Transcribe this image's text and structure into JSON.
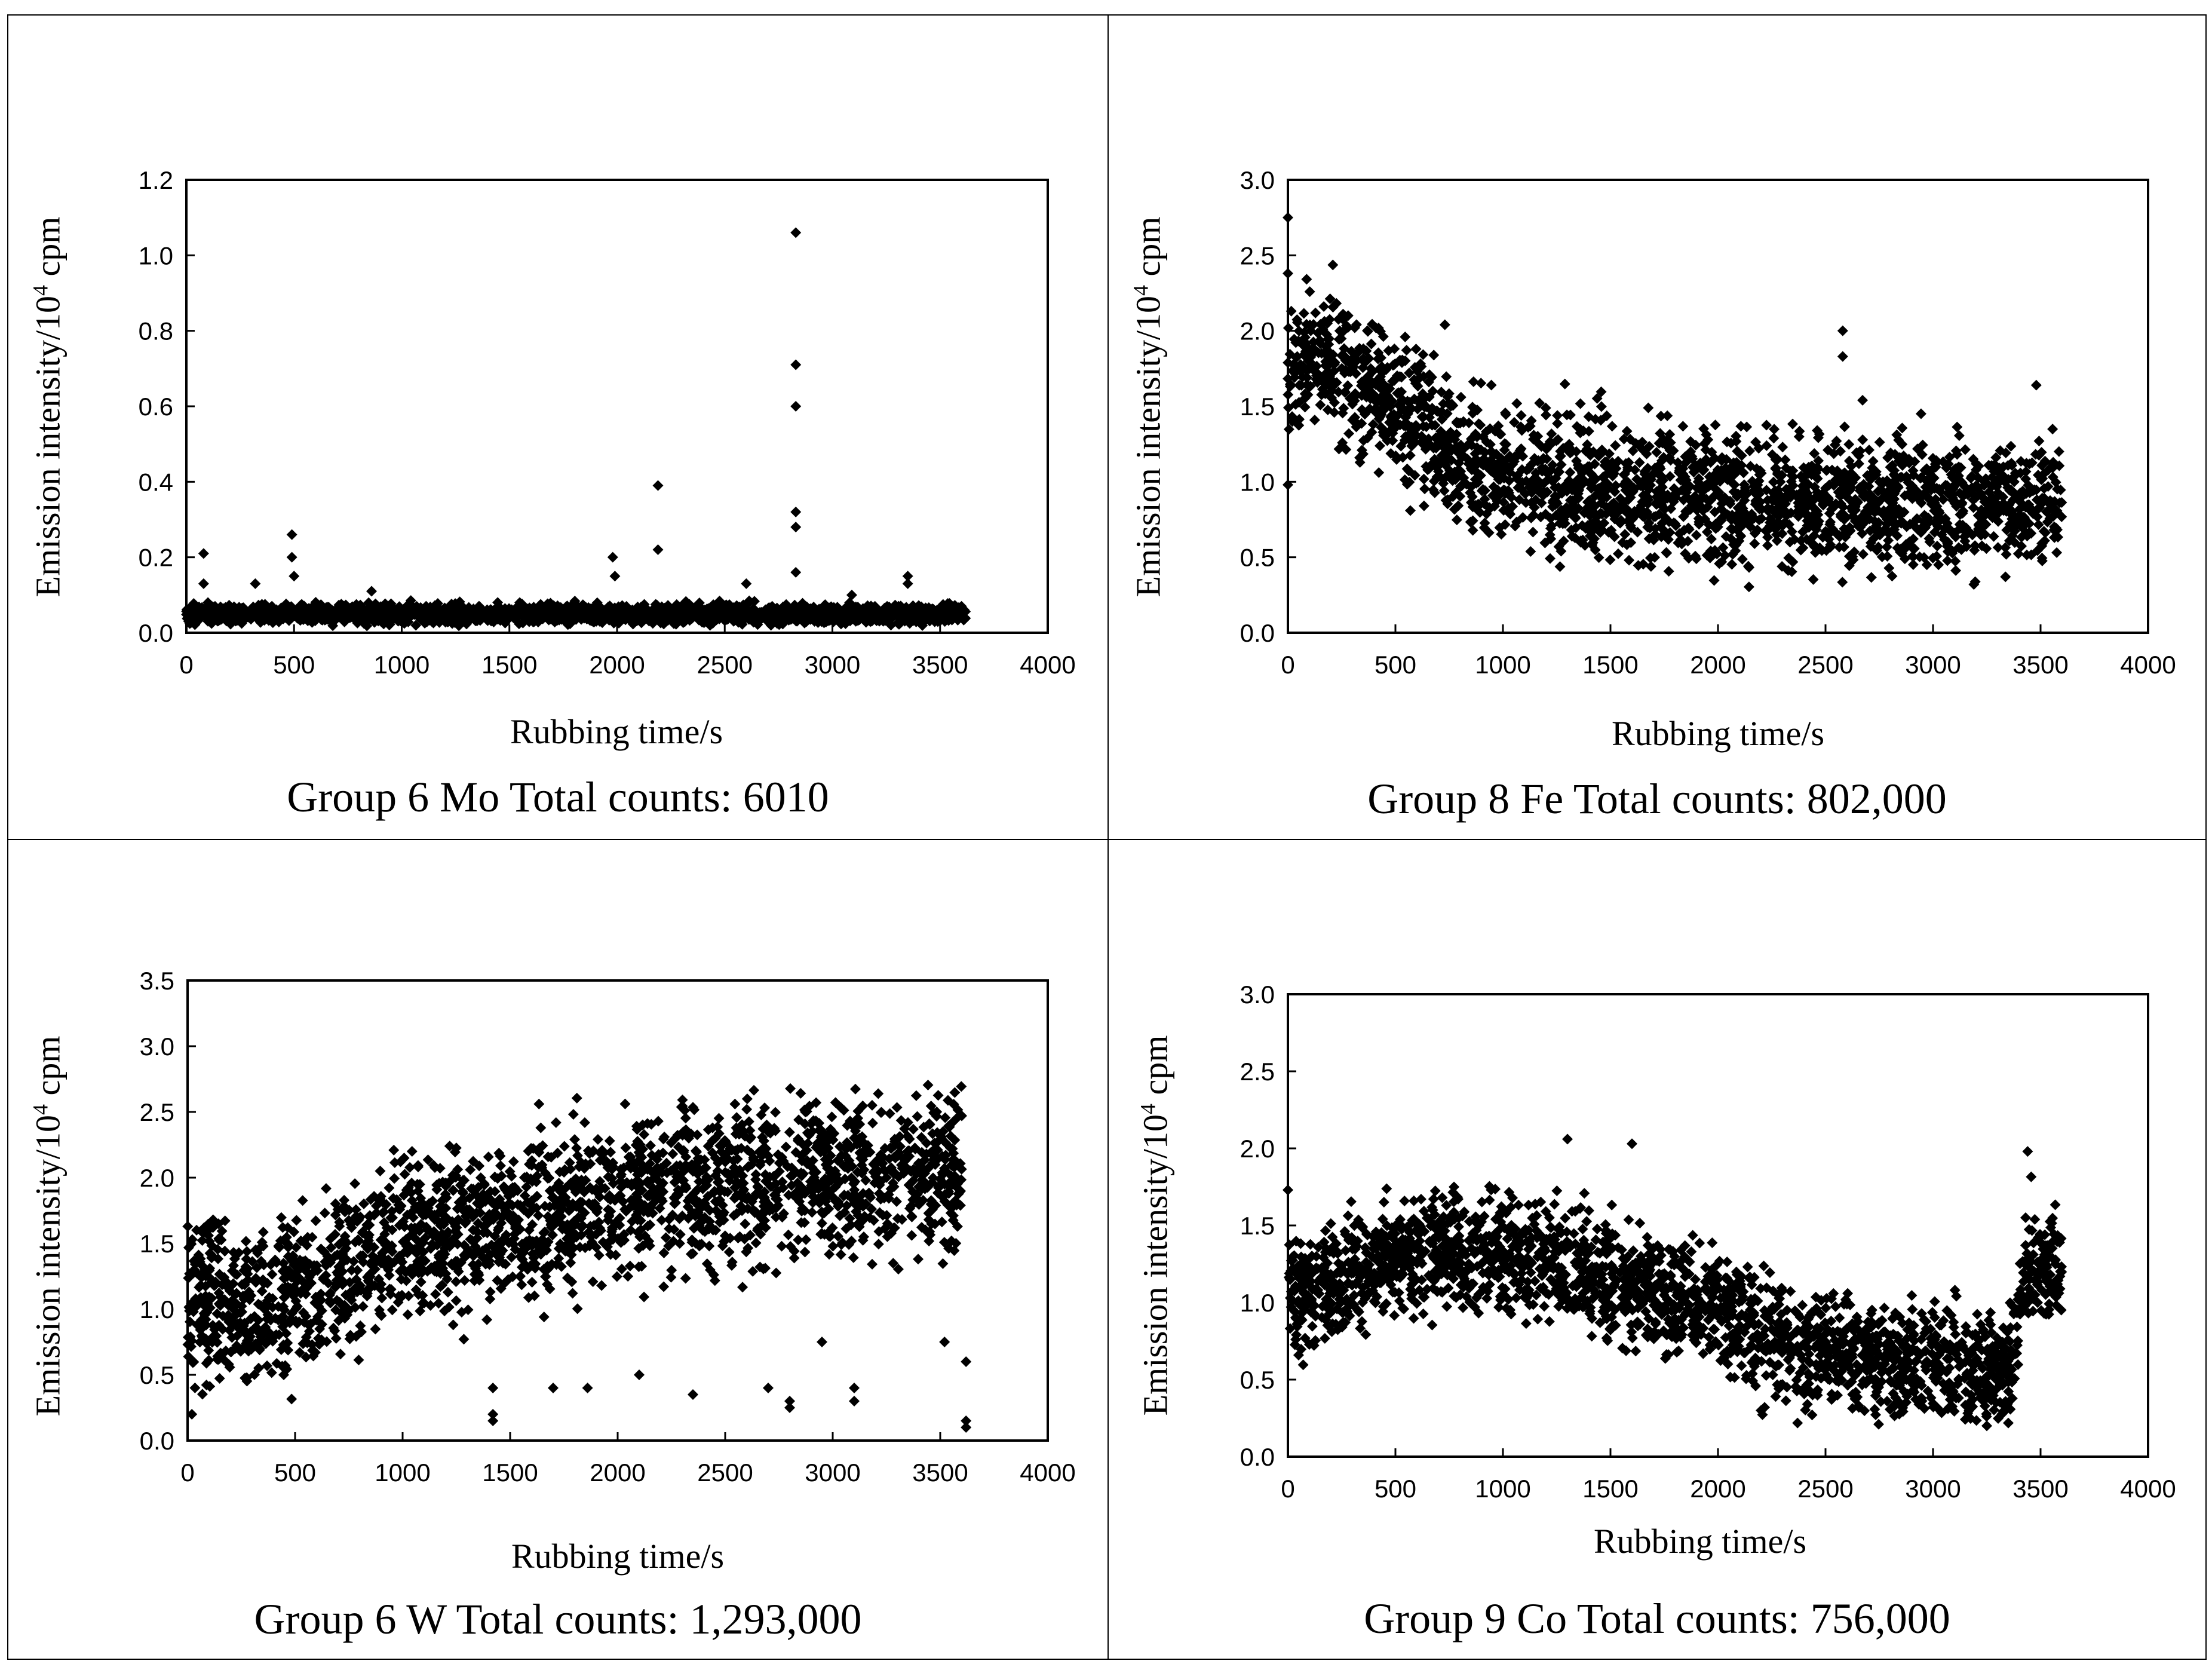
{
  "chart_data": [
    {
      "type": "scatter",
      "caption": "Group 6 Mo Total counts: 6010",
      "xlabel": "Rubbing time/s",
      "ylabel_main": "Emission intensity/10",
      "ylabel_sup": "4",
      "ylabel_unit": " cpm",
      "xlim": [
        0,
        4000
      ],
      "ylim": [
        0,
        1.2
      ],
      "xticks": [
        "0",
        "500",
        "1000",
        "1500",
        "2000",
        "2500",
        "3000",
        "3500",
        "4000"
      ],
      "yticks": [
        "0.0",
        "0.2",
        "0.4",
        "0.6",
        "0.8",
        "1.0",
        "1.2"
      ],
      "trend": [
        [
          0,
          0.05
        ],
        [
          1000,
          0.05
        ],
        [
          2000,
          0.05
        ],
        [
          3000,
          0.05
        ],
        [
          3620,
          0.05
        ]
      ],
      "spread": 0.012,
      "outliers": [
        [
          80,
          0.21
        ],
        [
          80,
          0.13
        ],
        [
          320,
          0.13
        ],
        [
          490,
          0.26
        ],
        [
          490,
          0.2
        ],
        [
          500,
          0.15
        ],
        [
          860,
          0.11
        ],
        [
          1980,
          0.2
        ],
        [
          1990,
          0.15
        ],
        [
          2190,
          0.39
        ],
        [
          2190,
          0.22
        ],
        [
          2830,
          1.06
        ],
        [
          2830,
          0.71
        ],
        [
          2830,
          0.6
        ],
        [
          2830,
          0.32
        ],
        [
          2830,
          0.28
        ],
        [
          2830,
          0.16
        ],
        [
          3350,
          0.15
        ],
        [
          3350,
          0.13
        ],
        [
          3090,
          0.1
        ],
        [
          2600,
          0.13
        ]
      ]
    },
    {
      "type": "scatter",
      "caption": "Group 8 Fe Total counts: 802,000",
      "xlabel": "Rubbing time/s",
      "ylabel_main": "Emission intensity/10",
      "ylabel_sup": "4",
      "ylabel_unit": " cpm",
      "xlim": [
        0,
        4000
      ],
      "ylim": [
        0,
        3.0
      ],
      "xticks": [
        "0",
        "500",
        "1000",
        "1500",
        "2000",
        "2500",
        "3000",
        "3500",
        "4000"
      ],
      "yticks": [
        "0.0",
        "0.5",
        "1.0",
        "1.5",
        "2.0",
        "2.5",
        "3.0"
      ],
      "trend": [
        [
          0,
          1.8
        ],
        [
          200,
          1.8
        ],
        [
          500,
          1.5
        ],
        [
          800,
          1.15
        ],
        [
          1200,
          1.0
        ],
        [
          2000,
          0.9
        ],
        [
          3000,
          0.85
        ],
        [
          3600,
          0.85
        ]
      ],
      "spread": 0.22,
      "outliers": [
        [
          0,
          2.75
        ],
        [
          0,
          2.38
        ],
        [
          0,
          0.98
        ],
        [
          2580,
          2.0
        ],
        [
          2580,
          1.83
        ],
        [
          3480,
          1.64
        ],
        [
          730,
          2.04
        ]
      ]
    },
    {
      "type": "scatter",
      "caption": "Group 6 W Total counts: 1,293,000",
      "xlabel": "Rubbing time/s",
      "ylabel_main": "Emission intensity/10",
      "ylabel_sup": "4",
      "ylabel_unit": " cpm",
      "xlim": [
        0,
        4000
      ],
      "ylim": [
        0,
        3.5
      ],
      "xticks": [
        "0",
        "500",
        "1000",
        "1500",
        "2000",
        "2500",
        "3000",
        "3500",
        "4000"
      ],
      "yticks": [
        "0.0",
        "0.5",
        "1.0",
        "1.5",
        "2.0",
        "2.5",
        "3.0",
        "3.5"
      ],
      "trend": [
        [
          0,
          1.1
        ],
        [
          300,
          0.95
        ],
        [
          600,
          1.2
        ],
        [
          1000,
          1.55
        ],
        [
          1500,
          1.7
        ],
        [
          2000,
          1.85
        ],
        [
          2500,
          1.95
        ],
        [
          3000,
          2.0
        ],
        [
          3600,
          2.05
        ]
      ],
      "spread": 0.3,
      "outliers": [
        [
          20,
          0.2
        ],
        [
          1420,
          0.15
        ],
        [
          1420,
          0.2
        ],
        [
          1420,
          0.4
        ],
        [
          2800,
          0.25
        ],
        [
          2800,
          0.3
        ],
        [
          3100,
          0.3
        ],
        [
          3100,
          0.4
        ],
        [
          3620,
          0.1
        ],
        [
          3620,
          0.15
        ],
        [
          3620,
          0.6
        ],
        [
          2950,
          0.75
        ],
        [
          3520,
          0.75
        ],
        [
          1700,
          0.4
        ],
        [
          1860,
          0.4
        ],
        [
          2700,
          0.4
        ],
        [
          2350,
          0.35
        ],
        [
          2100,
          0.5
        ]
      ]
    },
    {
      "type": "scatter",
      "caption": "Group 9 Co Total counts: 756,000",
      "xlabel": "Rubbing time/s",
      "ylabel_main": "Emission intensity/10",
      "ylabel_sup": "4",
      "ylabel_unit": " cpm",
      "xlim": [
        0,
        4000
      ],
      "ylim": [
        0,
        3.0
      ],
      "xticks": [
        "0",
        "500",
        "1000",
        "1500",
        "2000",
        "2500",
        "3000",
        "3500",
        "4000"
      ],
      "yticks": [
        "0.0",
        "0.5",
        "1.0",
        "1.5",
        "2.0",
        "2.5",
        "3.0"
      ],
      "trend": [
        [
          0,
          1.05
        ],
        [
          300,
          1.2
        ],
        [
          700,
          1.35
        ],
        [
          1200,
          1.3
        ],
        [
          1600,
          1.1
        ],
        [
          2000,
          0.95
        ],
        [
          2400,
          0.7
        ],
        [
          3000,
          0.6
        ],
        [
          3350,
          0.55
        ],
        [
          3450,
          1.3
        ],
        [
          3600,
          1.2
        ]
      ],
      "spread": 0.18,
      "outliers": [
        [
          0,
          1.73
        ],
        [
          1300,
          2.06
        ],
        [
          1600,
          2.03
        ],
        [
          3440,
          1.98
        ],
        [
          2200,
          0.3
        ],
        [
          3250,
          0.2
        ]
      ]
    }
  ]
}
